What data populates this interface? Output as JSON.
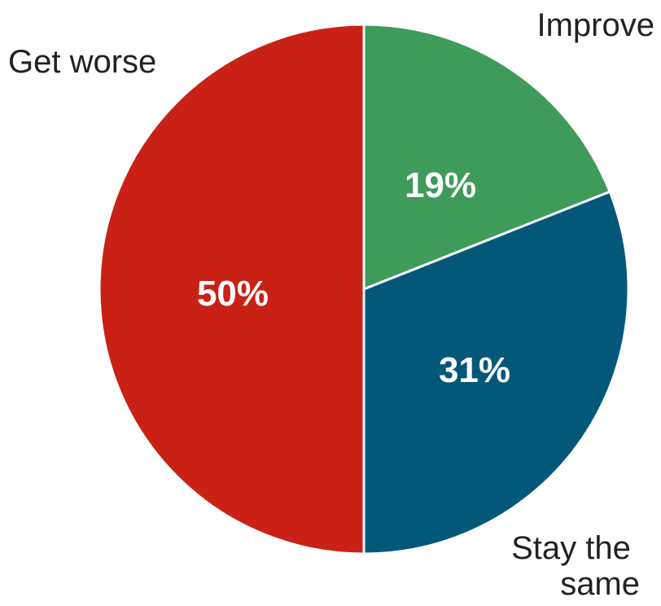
{
  "chart_data": {
    "type": "pie",
    "title": "",
    "slices": [
      {
        "label": "Improve",
        "value": 19,
        "value_label": "19%",
        "color": "#3f9b5a"
      },
      {
        "label": "Stay the same",
        "value": 31,
        "value_label": "31%",
        "color": "#03587a"
      },
      {
        "label": "Get worse",
        "value": 50,
        "value_label": "50%",
        "color": "#c92116"
      }
    ],
    "start": "12 o'clock",
    "direction": "clockwise",
    "slice_border_color": "#ffffff",
    "legend": "none"
  }
}
